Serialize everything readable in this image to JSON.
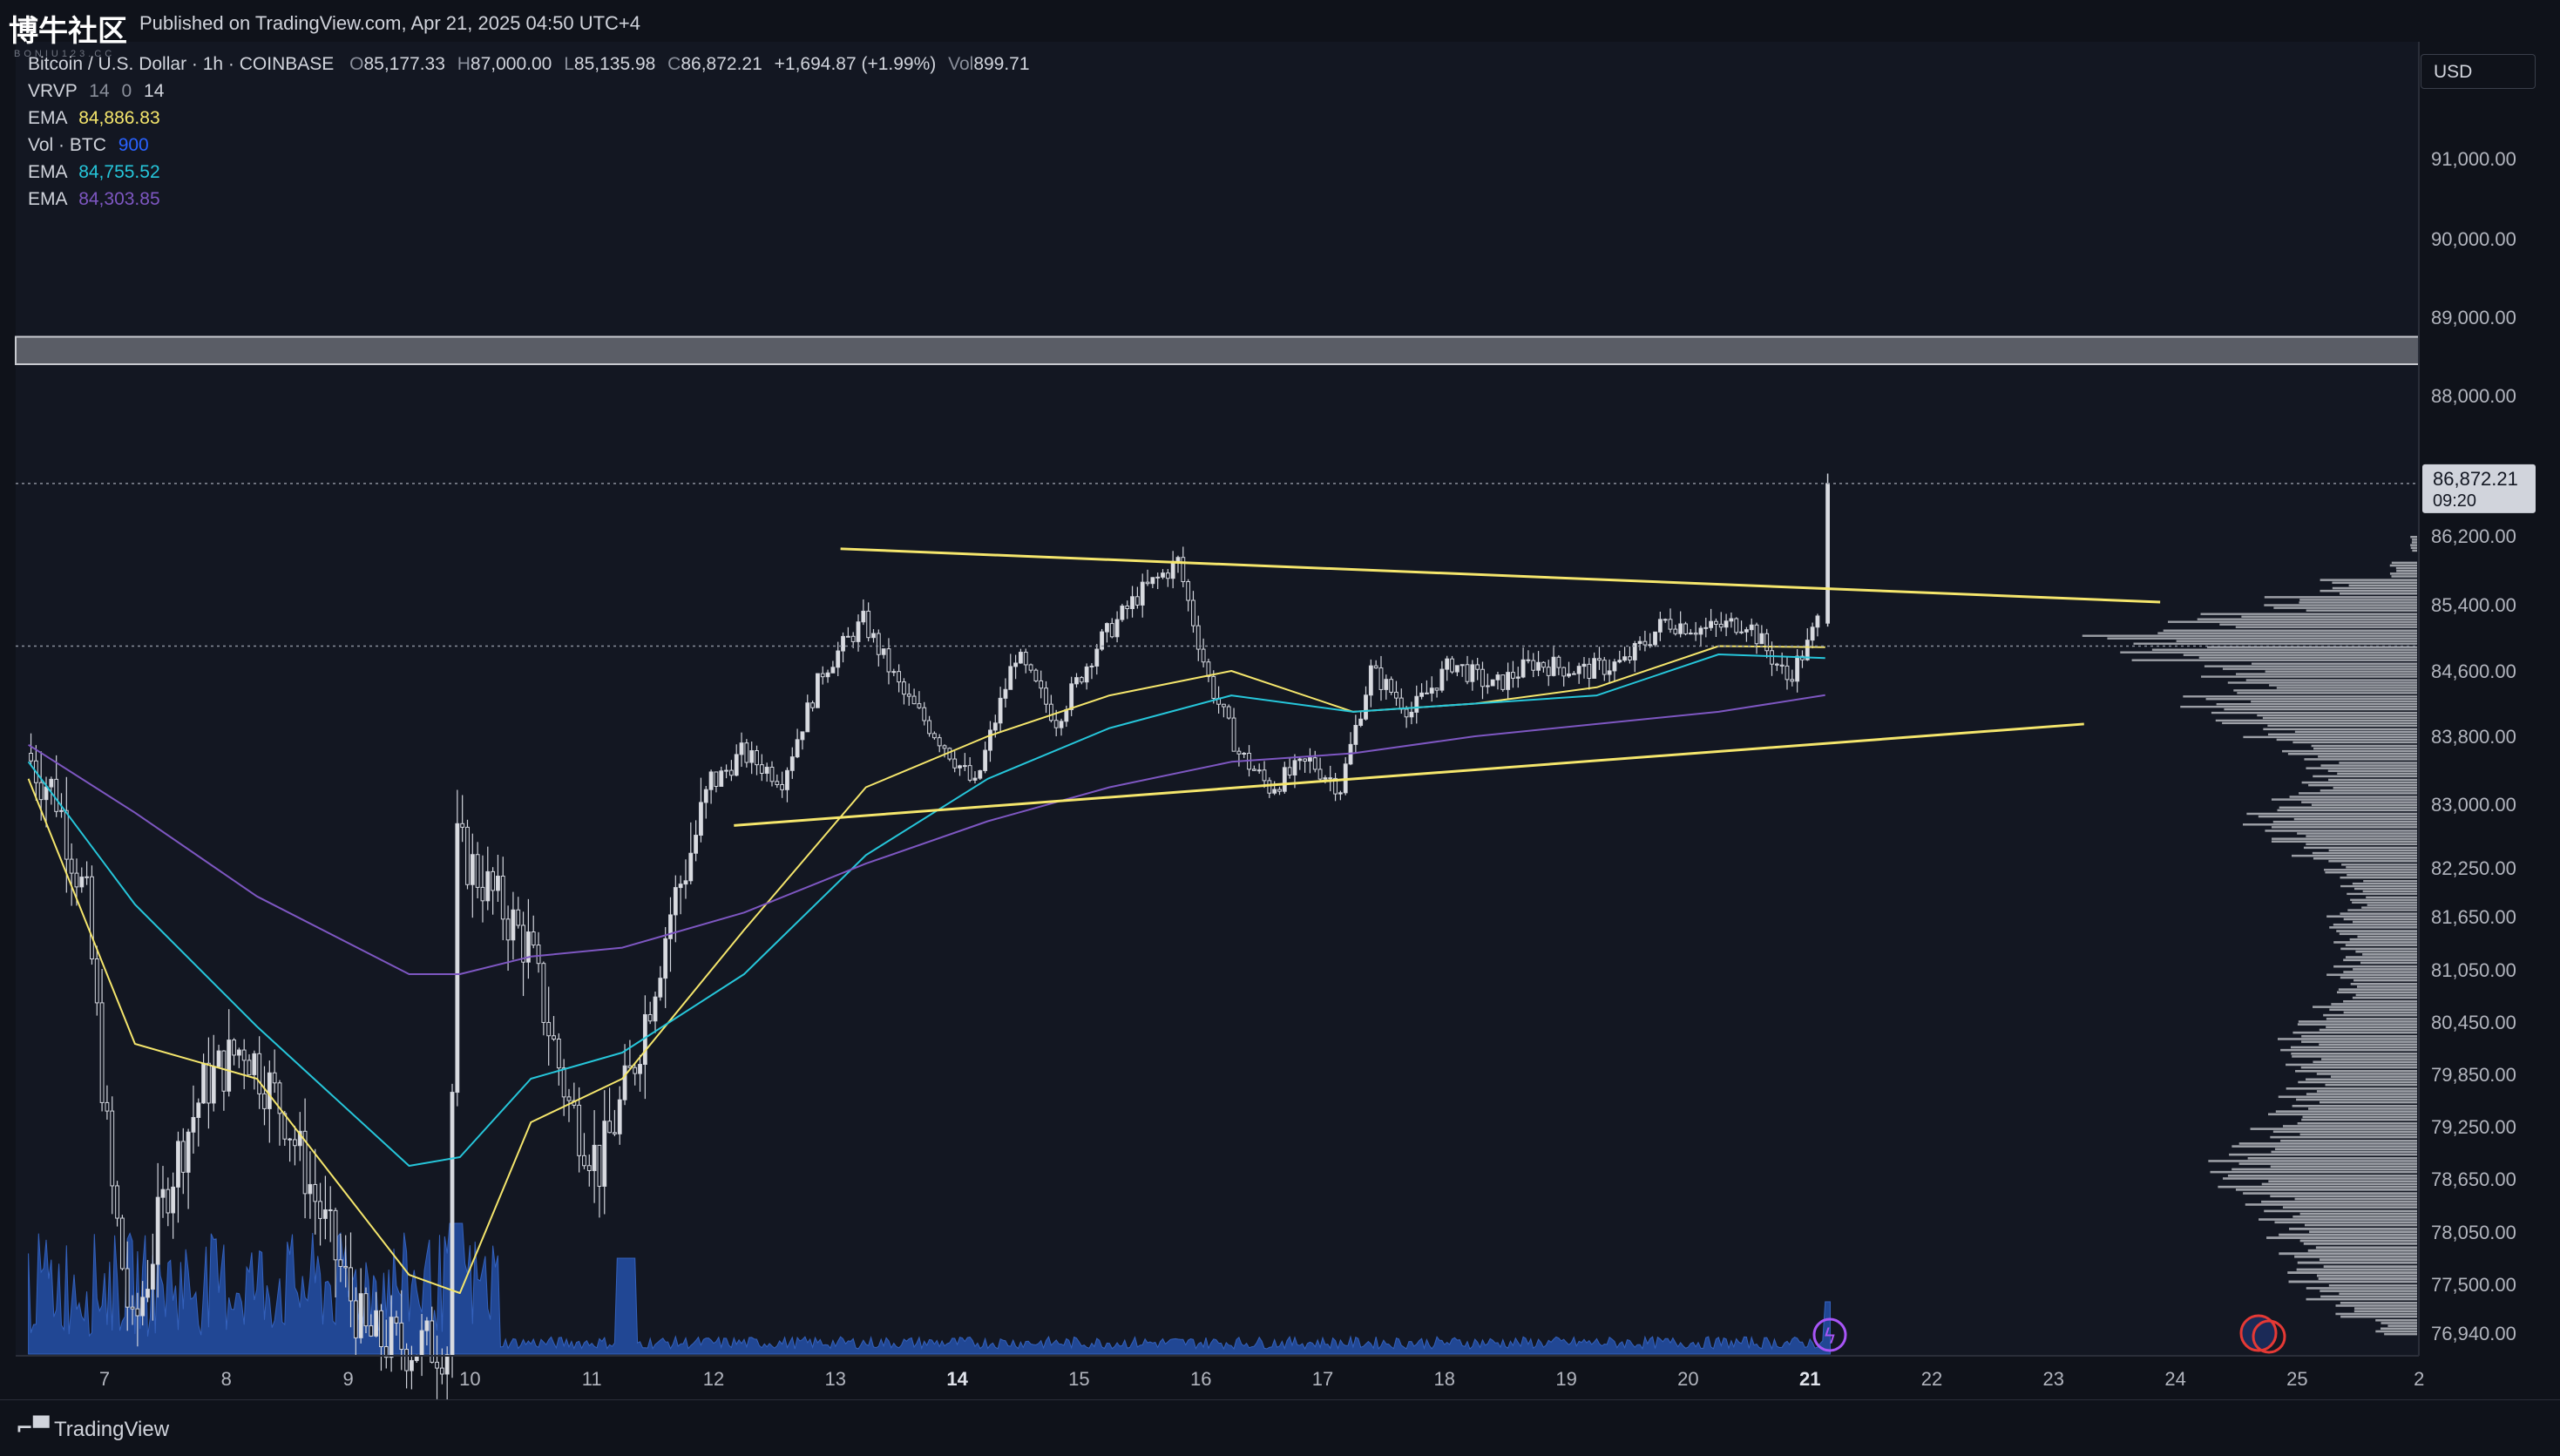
{
  "header": {
    "watermark": "博牛社区",
    "watermark_sub": "BONIU123.CC",
    "published": "Published on TradingView.com, Apr 21, 2025 04:50 UTC+4"
  },
  "legend": {
    "symbol": "Bitcoin / U.S. Dollar · 1h · COINBASE",
    "ohlc": {
      "o_label": "O",
      "o": "85,177.33",
      "h_label": "H",
      "h": "87,000.00",
      "l_label": "L",
      "l": "85,135.98",
      "c_label": "C",
      "c": "86,872.21",
      "change": "+1,694.87 (+1.99%)",
      "vol_label": "Vol",
      "vol": "899.71"
    },
    "vrvp": {
      "label": "VRVP",
      "a": "14",
      "b": "0",
      "c": "14"
    },
    "ema1": {
      "label": "EMA",
      "value": "84,886.83",
      "color": "#f5e66c"
    },
    "vol": {
      "label": "Vol · BTC",
      "value": "900",
      "color": "#2962ff"
    },
    "ema2": {
      "label": "EMA",
      "value": "84,755.52",
      "color": "#26c6da"
    },
    "ema3": {
      "label": "EMA",
      "value": "84,303.85",
      "color": "#7e57c2"
    }
  },
  "currency": "USD",
  "price_label": {
    "price": "86,872.21",
    "countdown": "09:20"
  },
  "footer": {
    "brand": "TradingView"
  },
  "chart_data": {
    "type": "candlestick",
    "timeframe": "1h",
    "symbol": "BTCUSD",
    "y_ticks": [
      91000,
      90000,
      89000,
      88000,
      86200,
      85400,
      84600,
      83800,
      83000,
      82250,
      81650,
      81050,
      80450,
      79850,
      79250,
      78650,
      78050,
      77500,
      76940
    ],
    "y_tick_labels": [
      "91,000.00",
      "90,000.00",
      "89,000.00",
      "88,000.00",
      "86,200.00",
      "85,400.00",
      "84,600.00",
      "83,800.00",
      "83,000.00",
      "82,250.00",
      "81,650.00",
      "81,050.00",
      "80,450.00",
      "79,850.00",
      "79,250.00",
      "78,650.00",
      "78,050.00",
      "77,500.00",
      "76,940.00"
    ],
    "x_ticks": [
      "7",
      "8",
      "9",
      "10",
      "11",
      "12",
      "13",
      "14",
      "15",
      "16",
      "17",
      "18",
      "19",
      "20",
      "21",
      "22",
      "23",
      "24",
      "25",
      "2"
    ],
    "last_price": 86872.21,
    "resistance_zone": [
      88400,
      88750
    ],
    "dotted_level": 84900,
    "trendlines": [
      {
        "name": "upper",
        "from": [
          "Apr 13 01:00",
          86050
        ],
        "to": [
          "Apr 23 21:00",
          85430
        ]
      },
      {
        "name": "lower",
        "from": [
          "Apr 12 04:00",
          82750
        ],
        "to": [
          "Apr 23 06:00",
          83950
        ]
      }
    ],
    "price_path": [
      [
        "Apr 6 09:00",
        83600
      ],
      [
        "Apr 6 15:00",
        83100
      ],
      [
        "Apr 6 21:00",
        81800
      ],
      [
        "Apr 7 02:00",
        78500
      ],
      [
        "Apr 7 06:00",
        76900
      ],
      [
        "Apr 7 13:00",
        78600
      ],
      [
        "Apr 7 20:00",
        79700
      ],
      [
        "Apr 8 04:00",
        80200
      ],
      [
        "Apr 8 12:00",
        79400
      ],
      [
        "Apr 8 20:00",
        78100
      ],
      [
        "Apr 9 04:00",
        76900
      ],
      [
        "Apr 9 12:00",
        76800
      ],
      [
        "Apr 9 20:00",
        76800
      ],
      [
        "Apr 9 22:00",
        82500
      ],
      [
        "Apr 10 04:00",
        82000
      ],
      [
        "Apr 10 12:00",
        81300
      ],
      [
        "Apr 10 20:00",
        79500
      ],
      [
        "Apr 11 02:00",
        78800
      ],
      [
        "Apr 11 08:00",
        79800
      ],
      [
        "Apr 11 16:00",
        81700
      ],
      [
        "Apr 12 00:00",
        83200
      ],
      [
        "Apr 12 06:00",
        83600
      ],
      [
        "Apr 12 14:00",
        83300
      ],
      [
        "Apr 12 22:00",
        84600
      ],
      [
        "Apr 13 06:00",
        85200
      ],
      [
        "Apr 13 14:00",
        84300
      ],
      [
        "Apr 13 22:00",
        83700
      ],
      [
        "Apr 14 04:00",
        83200
      ],
      [
        "Apr 14 12:00",
        84800
      ],
      [
        "Apr 14 20:00",
        84000
      ],
      [
        "Apr 15 04:00",
        84900
      ],
      [
        "Apr 15 12:00",
        85500
      ],
      [
        "Apr 15 20:00",
        85900
      ],
      [
        "Apr 16 02:00",
        84500
      ],
      [
        "Apr 16 08:00",
        83600
      ],
      [
        "Apr 16 14:00",
        83200
      ],
      [
        "Apr 16 22:00",
        83500
      ],
      [
        "Apr 17 04:00",
        83200
      ],
      [
        "Apr 17 10:00",
        84600
      ],
      [
        "Apr 17 18:00",
        84100
      ],
      [
        "Apr 18 02:00",
        84700
      ],
      [
        "Apr 18 10:00",
        84400
      ],
      [
        "Apr 18 18:00",
        84700
      ],
      [
        "Apr 19 04:00",
        84600
      ],
      [
        "Apr 19 12:00",
        84700
      ],
      [
        "Apr 19 20:00",
        85200
      ],
      [
        "Apr 20 04:00",
        85100
      ],
      [
        "Apr 20 12:00",
        85200
      ],
      [
        "Apr 20 20:00",
        84500
      ],
      [
        "Apr 21 00:00",
        84900
      ],
      [
        "Apr 21 02:00",
        85200
      ],
      [
        "Apr 21 03:00",
        86872
      ]
    ],
    "ema_series": [
      {
        "label": "EMA",
        "color": "#f5e66c",
        "points": [
          [
            "Apr 6 09:00",
            83300
          ],
          [
            "Apr 7 06:00",
            80200
          ],
          [
            "Apr 8 06:00",
            79800
          ],
          [
            "Apr 9 12:00",
            77600
          ],
          [
            "Apr 9 22:00",
            77400
          ],
          [
            "Apr 10 12:00",
            79300
          ],
          [
            "Apr 11 06:00",
            79800
          ],
          [
            "Apr 12 06:00",
            81500
          ],
          [
            "Apr 13 06:00",
            83200
          ],
          [
            "Apr 14 06:00",
            83800
          ],
          [
            "Apr 15 06:00",
            84300
          ],
          [
            "Apr 16 06:00",
            84600
          ],
          [
            "Apr 17 06:00",
            84100
          ],
          [
            "Apr 18 06:00",
            84200
          ],
          [
            "Apr 19 06:00",
            84400
          ],
          [
            "Apr 20 06:00",
            84900
          ],
          [
            "Apr 21 03:00",
            84887
          ]
        ]
      },
      {
        "label": "EMA",
        "color": "#26c6da",
        "points": [
          [
            "Apr 6 09:00",
            83500
          ],
          [
            "Apr 7 06:00",
            81800
          ],
          [
            "Apr 8 06:00",
            80400
          ],
          [
            "Apr 9 12:00",
            78800
          ],
          [
            "Apr 9 22:00",
            78900
          ],
          [
            "Apr 10 12:00",
            79800
          ],
          [
            "Apr 11 06:00",
            80100
          ],
          [
            "Apr 12 06:00",
            81000
          ],
          [
            "Apr 13 06:00",
            82400
          ],
          [
            "Apr 14 06:00",
            83300
          ],
          [
            "Apr 15 06:00",
            83900
          ],
          [
            "Apr 16 06:00",
            84300
          ],
          [
            "Apr 17 06:00",
            84100
          ],
          [
            "Apr 18 06:00",
            84200
          ],
          [
            "Apr 19 06:00",
            84300
          ],
          [
            "Apr 20 06:00",
            84800
          ],
          [
            "Apr 21 03:00",
            84756
          ]
        ]
      },
      {
        "label": "EMA",
        "color": "#7e57c2",
        "points": [
          [
            "Apr 6 09:00",
            83700
          ],
          [
            "Apr 7 06:00",
            82900
          ],
          [
            "Apr 8 06:00",
            81900
          ],
          [
            "Apr 9 12:00",
            81000
          ],
          [
            "Apr 9 22:00",
            81000
          ],
          [
            "Apr 10 12:00",
            81200
          ],
          [
            "Apr 11 06:00",
            81300
          ],
          [
            "Apr 12 06:00",
            81700
          ],
          [
            "Apr 13 06:00",
            82300
          ],
          [
            "Apr 14 06:00",
            82800
          ],
          [
            "Apr 15 06:00",
            83200
          ],
          [
            "Apr 16 06:00",
            83500
          ],
          [
            "Apr 17 06:00",
            83600
          ],
          [
            "Apr 18 06:00",
            83800
          ],
          [
            "Apr 19 06:00",
            83950
          ],
          [
            "Apr 20 06:00",
            84100
          ],
          [
            "Apr 21 03:00",
            84304
          ]
        ]
      }
    ],
    "volume_profile_bins": [
      [
        86100,
        0.02
      ],
      [
        85800,
        0.08
      ],
      [
        85600,
        0.28
      ],
      [
        85400,
        0.45
      ],
      [
        85200,
        0.72
      ],
      [
        85000,
        0.98
      ],
      [
        84800,
        0.86
      ],
      [
        84600,
        0.62
      ],
      [
        84400,
        0.55
      ],
      [
        84200,
        0.68
      ],
      [
        84000,
        0.6
      ],
      [
        83800,
        0.5
      ],
      [
        83600,
        0.4
      ],
      [
        83400,
        0.32
      ],
      [
        83200,
        0.34
      ],
      [
        83000,
        0.42
      ],
      [
        82800,
        0.5
      ],
      [
        82600,
        0.44
      ],
      [
        82400,
        0.36
      ],
      [
        82200,
        0.28
      ],
      [
        82000,
        0.22
      ],
      [
        81800,
        0.2
      ],
      [
        81600,
        0.26
      ],
      [
        81400,
        0.24
      ],
      [
        81200,
        0.22
      ],
      [
        81000,
        0.26
      ],
      [
        80800,
        0.24
      ],
      [
        80600,
        0.3
      ],
      [
        80400,
        0.36
      ],
      [
        80200,
        0.4
      ],
      [
        80000,
        0.38
      ],
      [
        79800,
        0.35
      ],
      [
        79600,
        0.4
      ],
      [
        79400,
        0.44
      ],
      [
        79200,
        0.48
      ],
      [
        79000,
        0.55
      ],
      [
        78800,
        0.6
      ],
      [
        78600,
        0.58
      ],
      [
        78400,
        0.5
      ],
      [
        78200,
        0.46
      ],
      [
        78000,
        0.44
      ],
      [
        77800,
        0.4
      ],
      [
        77600,
        0.38
      ],
      [
        77400,
        0.32
      ],
      [
        77200,
        0.24
      ],
      [
        77000,
        0.12
      ]
    ]
  }
}
